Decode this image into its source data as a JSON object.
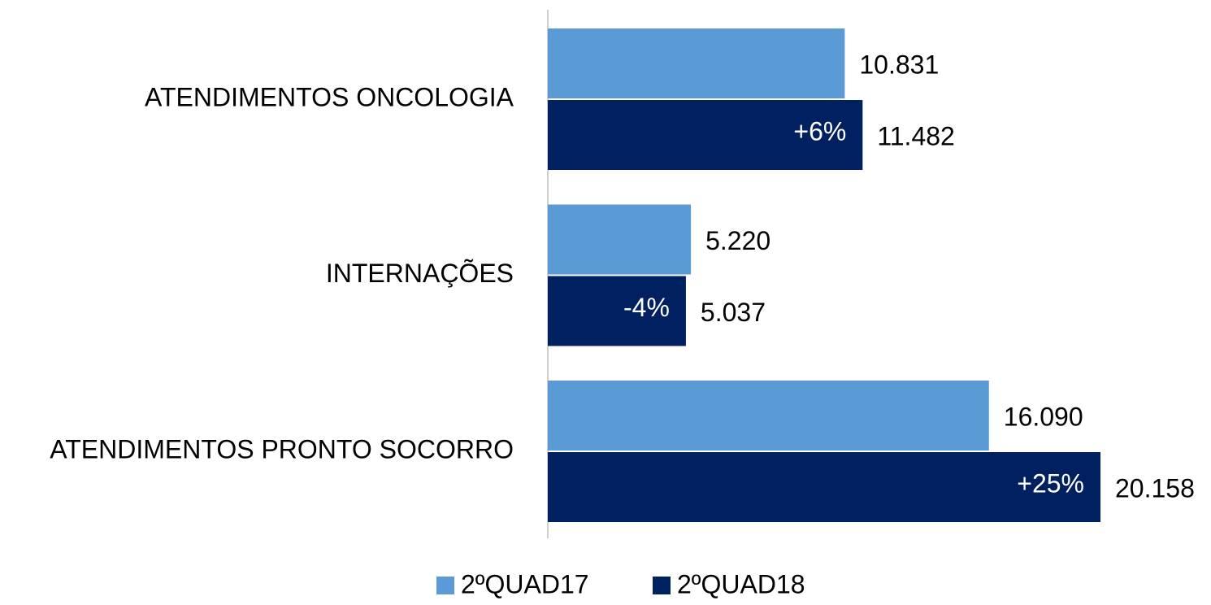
{
  "chart_data": {
    "type": "bar",
    "orientation": "horizontal",
    "categories": [
      "ATENDIMENTOS ONCOLOGIA",
      "INTERNAÇÕES",
      "ATENDIMENTOS PRONTO SOCORRO"
    ],
    "series": [
      {
        "name": "2ºQUAD17",
        "color": "#5b9bd5",
        "values": [
          10831,
          5220,
          16090
        ],
        "value_labels": [
          "10.831",
          "5.220",
          "16.090"
        ]
      },
      {
        "name": "2ºQUAD18",
        "color": "#002060",
        "values": [
          11482,
          5037,
          20158
        ],
        "value_labels": [
          "11.482",
          "5.037",
          "20.158"
        ]
      }
    ],
    "annotations": [
      "+6%",
      "-4%",
      "+25%"
    ],
    "legend": "bottom"
  }
}
